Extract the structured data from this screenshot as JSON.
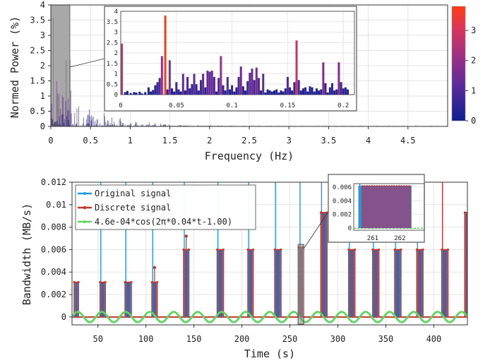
{
  "chart_data": [
    {
      "type": "bar",
      "id": "spectrum",
      "xlabel": "Frequency (Hz)",
      "ylabel": "Normed Power (%)",
      "xlim": [
        0,
        5
      ],
      "ylim": [
        0,
        4
      ],
      "xticks": [
        "0",
        "0.5",
        "1",
        "1.5",
        "2",
        "2.5",
        "3",
        "3.5",
        "4",
        "4.5"
      ],
      "yticks": [
        "0",
        "0.5",
        "1",
        "1.5",
        "2",
        "2.5",
        "3",
        "3.5",
        "4"
      ],
      "grid": true,
      "highlight_range": [
        0,
        0.24
      ],
      "colorbar": {
        "range": [
          0,
          3.8
        ],
        "ticks": [
          "0",
          "1",
          "2",
          "3"
        ],
        "colors": [
          "#0b1f8f",
          "#5a2a9a",
          "#9a2f86",
          "#d8355a",
          "#ff3c14"
        ]
      },
      "inset": {
        "xlim": [
          0,
          0.21
        ],
        "ylim": [
          0,
          4
        ],
        "xticks": [
          "0",
          "0.05",
          "0.1",
          "0.15",
          "0.2"
        ],
        "yticks": [
          "0",
          "0.5",
          "1",
          "1.5",
          "2",
          "2.5",
          "3",
          "3.5",
          "4"
        ],
        "bars": [
          {
            "f": 0.001,
            "p": 2.45
          },
          {
            "f": 0.004,
            "p": 0.12
          },
          {
            "f": 0.006,
            "p": 0.18
          },
          {
            "f": 0.009,
            "p": 0.08
          },
          {
            "f": 0.012,
            "p": 0.12
          },
          {
            "f": 0.014,
            "p": 0.1
          },
          {
            "f": 0.017,
            "p": 0.14
          },
          {
            "f": 0.019,
            "p": 0.06
          },
          {
            "f": 0.022,
            "p": 0.12
          },
          {
            "f": 0.025,
            "p": 0.35
          },
          {
            "f": 0.027,
            "p": 0.15
          },
          {
            "f": 0.029,
            "p": 0.22
          },
          {
            "f": 0.031,
            "p": 0.45
          },
          {
            "f": 0.033,
            "p": 0.6
          },
          {
            "f": 0.035,
            "p": 0.8
          },
          {
            "f": 0.037,
            "p": 1.85
          },
          {
            "f": 0.04,
            "p": 3.8
          },
          {
            "f": 0.042,
            "p": 0.25
          },
          {
            "f": 0.044,
            "p": 1.65
          },
          {
            "f": 0.046,
            "p": 0.3
          },
          {
            "f": 0.048,
            "p": 0.15
          },
          {
            "f": 0.05,
            "p": 0.6
          },
          {
            "f": 0.052,
            "p": 0.25
          },
          {
            "f": 0.054,
            "p": 0.15
          },
          {
            "f": 0.056,
            "p": 1.0
          },
          {
            "f": 0.058,
            "p": 0.2
          },
          {
            "f": 0.06,
            "p": 0.85
          },
          {
            "f": 0.062,
            "p": 0.3
          },
          {
            "f": 0.064,
            "p": 0.5
          },
          {
            "f": 0.066,
            "p": 1.0
          },
          {
            "f": 0.068,
            "p": 0.5
          },
          {
            "f": 0.07,
            "p": 0.2
          },
          {
            "f": 0.072,
            "p": 0.7
          },
          {
            "f": 0.074,
            "p": 1.0
          },
          {
            "f": 0.076,
            "p": 0.35
          },
          {
            "f": 0.078,
            "p": 1.15
          },
          {
            "f": 0.08,
            "p": 1.1
          },
          {
            "f": 0.082,
            "p": 1.15
          },
          {
            "f": 0.084,
            "p": 0.85
          },
          {
            "f": 0.086,
            "p": 0.15
          },
          {
            "f": 0.088,
            "p": 0.8
          },
          {
            "f": 0.09,
            "p": 1.85
          },
          {
            "f": 0.092,
            "p": 0.45
          },
          {
            "f": 0.094,
            "p": 0.2
          },
          {
            "f": 0.096,
            "p": 0.85
          },
          {
            "f": 0.098,
            "p": 0.25
          },
          {
            "f": 0.1,
            "p": 0.45
          },
          {
            "f": 0.102,
            "p": 0.15
          },
          {
            "f": 0.104,
            "p": 0.35
          },
          {
            "f": 0.106,
            "p": 0.85
          },
          {
            "f": 0.108,
            "p": 1.35
          },
          {
            "f": 0.11,
            "p": 0.4
          },
          {
            "f": 0.112,
            "p": 0.2
          },
          {
            "f": 0.114,
            "p": 0.65
          },
          {
            "f": 0.116,
            "p": 1.05
          },
          {
            "f": 0.118,
            "p": 1.25
          },
          {
            "f": 0.12,
            "p": 0.7
          },
          {
            "f": 0.122,
            "p": 1.3
          },
          {
            "f": 0.124,
            "p": 0.8
          },
          {
            "f": 0.126,
            "p": 0.2
          },
          {
            "f": 0.128,
            "p": 1.0
          },
          {
            "f": 0.13,
            "p": 0.1
          },
          {
            "f": 0.132,
            "p": 0.25
          },
          {
            "f": 0.134,
            "p": 0.2
          },
          {
            "f": 0.136,
            "p": 0.15
          },
          {
            "f": 0.138,
            "p": 0.2
          },
          {
            "f": 0.14,
            "p": 0.25
          },
          {
            "f": 0.142,
            "p": 0.1
          },
          {
            "f": 0.144,
            "p": 0.2
          },
          {
            "f": 0.146,
            "p": 0.15
          },
          {
            "f": 0.148,
            "p": 0.3
          },
          {
            "f": 0.15,
            "p": 0.85
          },
          {
            "f": 0.152,
            "p": 0.35
          },
          {
            "f": 0.154,
            "p": 0.2
          },
          {
            "f": 0.156,
            "p": 0.6
          },
          {
            "f": 0.158,
            "p": 2.6
          },
          {
            "f": 0.16,
            "p": 0.7
          },
          {
            "f": 0.162,
            "p": 0.2
          },
          {
            "f": 0.164,
            "p": 0.3
          },
          {
            "f": 0.166,
            "p": 0.35
          },
          {
            "f": 0.168,
            "p": 0.15
          },
          {
            "f": 0.17,
            "p": 0.4
          },
          {
            "f": 0.172,
            "p": 0.35
          },
          {
            "f": 0.174,
            "p": 0.15
          },
          {
            "f": 0.176,
            "p": 0.3
          },
          {
            "f": 0.178,
            "p": 0.2
          },
          {
            "f": 0.18,
            "p": 0.25
          },
          {
            "f": 0.182,
            "p": 1.55
          },
          {
            "f": 0.184,
            "p": 0.55
          },
          {
            "f": 0.186,
            "p": 0.1
          },
          {
            "f": 0.188,
            "p": 0.35
          },
          {
            "f": 0.19,
            "p": 0.55
          },
          {
            "f": 0.192,
            "p": 0.2
          },
          {
            "f": 0.194,
            "p": 0.25
          },
          {
            "f": 0.196,
            "p": 1.55
          },
          {
            "f": 0.198,
            "p": 0.6
          },
          {
            "f": 0.2,
            "p": 0.3
          },
          {
            "f": 0.202,
            "p": 0.35
          },
          {
            "f": 0.204,
            "p": 0.25
          }
        ]
      }
    },
    {
      "type": "line",
      "id": "timeseries",
      "xlabel": "Time (s)",
      "ylabel": "Bandwidth (MB/s)",
      "xlim": [
        23,
        435
      ],
      "ylim": [
        -0.0007,
        0.012
      ],
      "xticks": [
        "50",
        "100",
        "150",
        "200",
        "250",
        "300",
        "350",
        "400"
      ],
      "yticks": [
        "0",
        "0.002",
        "0.004",
        "0.006",
        "0.008",
        "0.01",
        "0.012"
      ],
      "grid": true,
      "legend": [
        "Original signal",
        "Discrete signal",
        "4.6e-04*cos(2π*0.04*t-1.00)"
      ],
      "legend_position": "top-left",
      "series_colors": {
        "original": "#1f9be6",
        "discrete": "#c0392b",
        "fit": "#5cd65c"
      },
      "cosine_fit": {
        "amplitude": 0.00046,
        "frequency": 0.04,
        "phase": -1.0
      },
      "blocks": [
        {
          "t0": 26,
          "t1": 29,
          "level": 0.0031,
          "spike": 0.0
        },
        {
          "t0": 53,
          "t1": 57,
          "level": 0.0031,
          "spike": 0.0
        },
        {
          "t0": 79,
          "t1": 84,
          "level": 0.0031,
          "spike": 0.0
        },
        {
          "t0": 107,
          "t1": 111,
          "level": 0.0031,
          "spike": 0.0044
        },
        {
          "t0": 140,
          "t1": 144,
          "level": 0.006,
          "spike": 0.0072
        },
        {
          "t0": 175,
          "t1": 180,
          "level": 0.006,
          "spike": 0.0
        },
        {
          "t0": 207,
          "t1": 211,
          "level": 0.006,
          "spike": 0.0
        },
        {
          "t0": 235,
          "t1": 240,
          "level": 0.006,
          "spike": 0.0
        },
        {
          "t0": 260.6,
          "t1": 262.4,
          "level": 0.0062,
          "spike": 0.0
        },
        {
          "t0": 283,
          "t1": 288,
          "level": 0.0093,
          "spike": 0.0
        },
        {
          "t0": 312,
          "t1": 317,
          "level": 0.006,
          "spike": 0.0
        },
        {
          "t0": 337,
          "t1": 342,
          "level": 0.006,
          "spike": 0.0
        },
        {
          "t0": 360,
          "t1": 365,
          "level": 0.006,
          "spike": 0.0
        },
        {
          "t0": 383,
          "t1": 388,
          "level": 0.006,
          "spike": 0.0
        },
        {
          "t0": 409,
          "t1": 414,
          "level": 0.006,
          "spike": 0.0
        },
        {
          "t0": 433,
          "t1": 436,
          "level": 0.0093,
          "spike": 0.0
        }
      ],
      "original_spikes": [
        53,
        79,
        107,
        140,
        175,
        207,
        235,
        260.6,
        283,
        312,
        337,
        360,
        383
      ],
      "discrete_spikes": [
        409
      ],
      "highlight_range": [
        258.5,
        264.5
      ],
      "inset": {
        "xlim": [
          260.3,
          262.9
        ],
        "ylim": [
          -0.0003,
          0.0065
        ],
        "xticks": [
          "261",
          "262"
        ],
        "yticks": [
          "0",
          "0.002",
          "0.004",
          "0.006"
        ]
      }
    }
  ]
}
